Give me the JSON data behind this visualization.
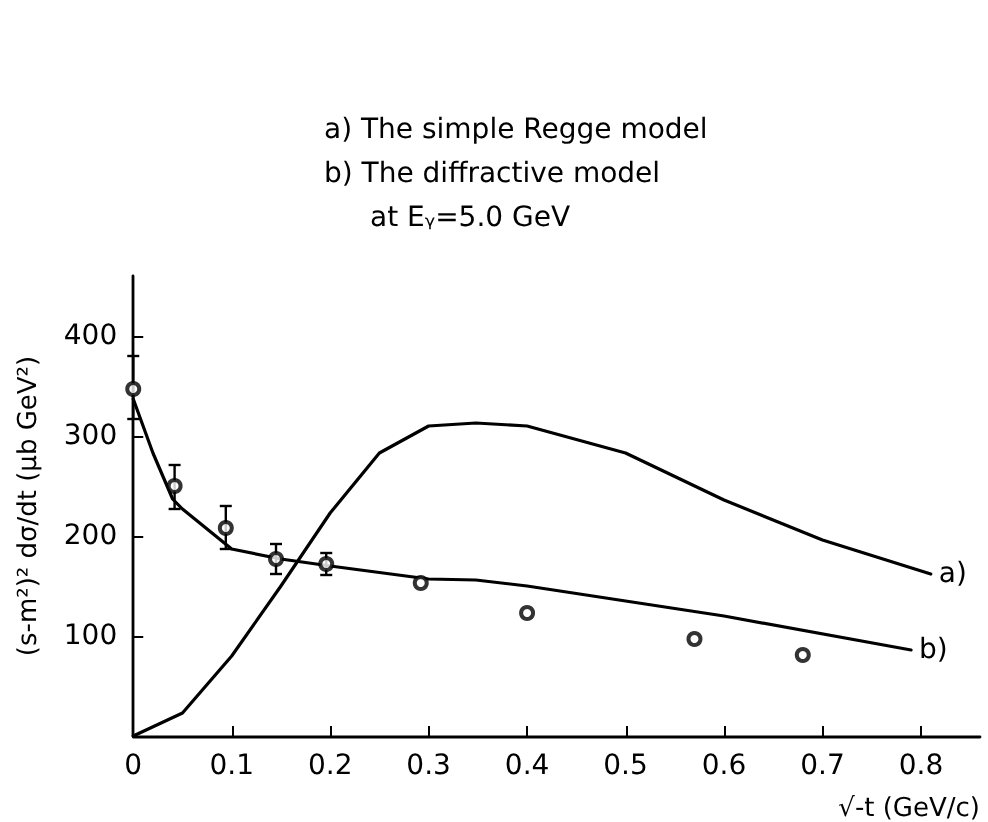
{
  "chart_data": {
    "type": "line",
    "annotations": [
      "a) The simple Regge model",
      "b) The diffractive model",
      "at Eᵧ=5.0 GeV"
    ],
    "xlabel": "√-t (GeV/c)",
    "ylabel": "(s-m²)² dσ/dt (μb GeV²)",
    "xlim": [
      0,
      0.86
    ],
    "xticks": [
      0,
      0.1,
      0.2,
      0.3,
      0.4,
      0.5,
      0.6,
      0.7,
      0.8
    ],
    "ylim": [
      0,
      460
    ],
    "yticks": [
      100,
      200,
      300,
      400
    ],
    "grid": false,
    "legend": false,
    "line_style": "solid",
    "series": [
      {
        "name": "a)",
        "color": "#000000",
        "marker": "none",
        "x": [
          0,
          0.05,
          0.1,
          0.15,
          0.2,
          0.25,
          0.3,
          0.348,
          0.4,
          0.5,
          0.6,
          0.7,
          0.81
        ],
        "values": [
          0,
          23,
          80,
          150,
          223,
          283,
          310,
          313,
          310,
          283,
          236,
          196,
          162
        ]
      },
      {
        "name": "b)",
        "color": "#000000",
        "marker": "none",
        "x": [
          0,
          0.02,
          0.04,
          0.05,
          0.1,
          0.15,
          0.2,
          0.3,
          0.348,
          0.4,
          0.6,
          0.79
        ],
        "values": [
          337,
          283,
          237,
          227,
          187,
          177,
          170,
          157,
          156,
          150,
          120,
          86
        ]
      },
      {
        "type": "scatter",
        "color": "#000000",
        "marker": "circle",
        "x": [
          0,
          0.042,
          0.094,
          0.145,
          0.196,
          0.292,
          0.4,
          0.57,
          0.68
        ],
        "values": [
          347,
          250,
          208,
          177,
          172,
          153,
          123,
          97,
          81
        ],
        "errors": [
          [
            317,
            380
          ],
          [
            227,
            271
          ],
          [
            187,
            230
          ],
          [
            162,
            192
          ],
          [
            161,
            183
          ],
          null,
          null,
          null,
          null
        ]
      }
    ]
  }
}
